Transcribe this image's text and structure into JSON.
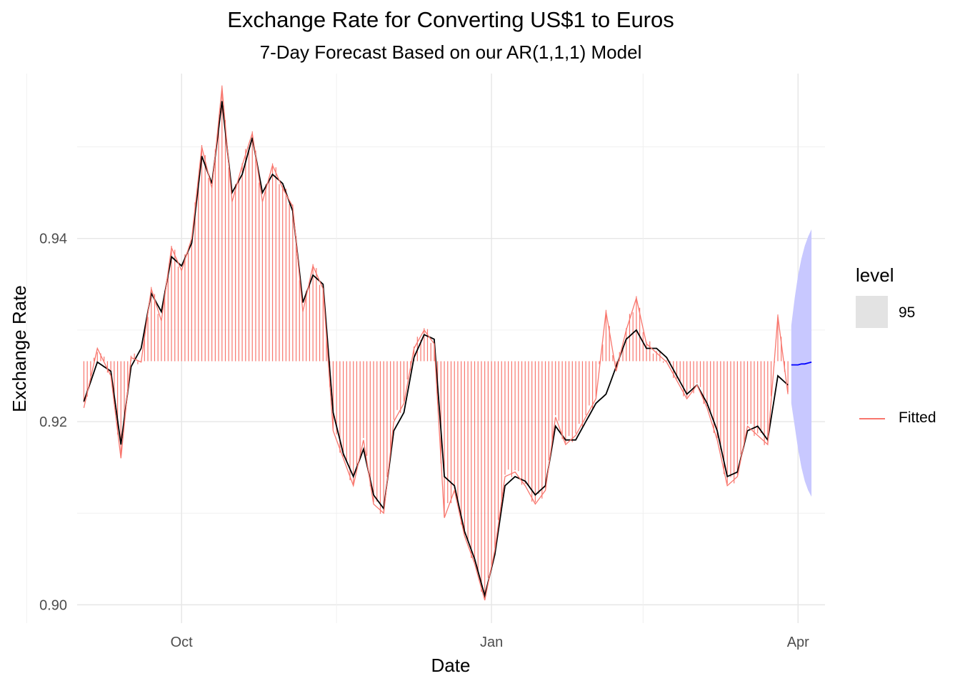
{
  "chart_data": {
    "type": "line",
    "title": "Exchange Rate for Converting US$1 to Euros",
    "subtitle": "7-Day Forecast Based on our AR(1,1,1) Model",
    "xlabel": "Date",
    "ylabel": "Exchange Rate",
    "x_ticks": [
      "Oct",
      "Jan",
      "Apr"
    ],
    "y_ticks": [
      "0.90",
      "0.92",
      "0.94"
    ],
    "ylim": [
      0.898,
      0.958
    ],
    "xlim": [
      "2023-08-31",
      "2024-04-09"
    ],
    "grid": true,
    "legend": {
      "position": "right",
      "title": "level",
      "items": [
        {
          "label": "95",
          "kind": "fill",
          "color": "#e3e3e3"
        },
        {
          "label": "Fitted",
          "kind": "line",
          "color": "#f8766d"
        }
      ]
    },
    "reference_level": 0.9266,
    "colors": {
      "actual": "#000000",
      "fitted": "#f8766d",
      "forecast": "#0000ff",
      "interval": "#c8c8ff"
    },
    "series": [
      {
        "kind": "actual",
        "x": [
          "2023-09-02",
          "2023-09-06",
          "2023-09-10",
          "2023-09-13",
          "2023-09-16",
          "2023-09-19",
          "2023-09-22",
          "2023-09-25",
          "2023-09-28",
          "2023-10-01",
          "2023-10-04",
          "2023-10-07",
          "2023-10-10",
          "2023-10-13",
          "2023-10-16",
          "2023-10-19",
          "2023-10-22",
          "2023-10-25",
          "2023-10-28",
          "2023-10-31",
          "2023-11-03",
          "2023-11-06",
          "2023-11-09",
          "2023-11-12",
          "2023-11-15",
          "2023-11-18",
          "2023-11-21",
          "2023-11-24",
          "2023-11-27",
          "2023-11-30",
          "2023-12-03",
          "2023-12-06",
          "2023-12-09",
          "2023-12-12",
          "2023-12-15",
          "2023-12-18",
          "2023-12-21",
          "2023-12-24",
          "2023-12-27",
          "2023-12-30",
          "2024-01-02",
          "2024-01-05",
          "2024-01-08",
          "2024-01-11",
          "2024-01-14",
          "2024-01-17",
          "2024-01-20",
          "2024-01-23",
          "2024-01-26",
          "2024-01-29",
          "2024-02-01",
          "2024-02-04",
          "2024-02-07",
          "2024-02-10",
          "2024-02-13",
          "2024-02-16",
          "2024-02-19",
          "2024-02-22",
          "2024-02-25",
          "2024-02-28",
          "2024-03-02",
          "2024-03-05",
          "2024-03-08",
          "2024-03-11",
          "2024-03-14",
          "2024-03-17",
          "2024-03-20",
          "2024-03-23",
          "2024-03-26",
          "2024-03-29"
        ],
        "y": [
          0.9222,
          0.9265,
          0.9255,
          0.9175,
          0.926,
          0.928,
          0.934,
          0.932,
          0.938,
          0.937,
          0.9395,
          0.949,
          0.946,
          0.955,
          0.945,
          0.947,
          0.951,
          0.945,
          0.947,
          0.946,
          0.943,
          0.933,
          0.936,
          0.935,
          0.921,
          0.9165,
          0.914,
          0.917,
          0.912,
          0.9105,
          0.919,
          0.921,
          0.927,
          0.9295,
          0.929,
          0.914,
          0.913,
          0.908,
          0.905,
          0.901,
          0.9055,
          0.913,
          0.914,
          0.9135,
          0.912,
          0.913,
          0.9195,
          0.918,
          0.918,
          0.92,
          0.922,
          0.923,
          0.926,
          0.929,
          0.93,
          0.928,
          0.928,
          0.927,
          0.925,
          0.923,
          0.924,
          0.922,
          0.919,
          0.914,
          0.9145,
          0.919,
          0.9195,
          0.918,
          0.925,
          0.924
        ]
      },
      {
        "kind": "fitted",
        "name": "Fitted",
        "x": [
          "2023-09-02",
          "2023-09-06",
          "2023-09-10",
          "2023-09-13",
          "2023-09-16",
          "2023-09-19",
          "2023-09-22",
          "2023-09-25",
          "2023-09-28",
          "2023-10-01",
          "2023-10-04",
          "2023-10-07",
          "2023-10-10",
          "2023-10-13",
          "2023-10-16",
          "2023-10-19",
          "2023-10-22",
          "2023-10-25",
          "2023-10-28",
          "2023-10-31",
          "2023-11-03",
          "2023-11-06",
          "2023-11-09",
          "2023-11-12",
          "2023-11-15",
          "2023-11-18",
          "2023-11-21",
          "2023-11-24",
          "2023-11-27",
          "2023-11-30",
          "2023-12-03",
          "2023-12-06",
          "2023-12-09",
          "2023-12-12",
          "2023-12-15",
          "2023-12-18",
          "2023-12-21",
          "2023-12-24",
          "2023-12-27",
          "2023-12-30",
          "2024-01-02",
          "2024-01-05",
          "2024-01-08",
          "2024-01-11",
          "2024-01-14",
          "2024-01-17",
          "2024-01-20",
          "2024-01-23",
          "2024-01-26",
          "2024-01-29",
          "2024-02-01",
          "2024-02-04",
          "2024-02-07",
          "2024-02-10",
          "2024-02-13",
          "2024-02-16",
          "2024-02-19",
          "2024-02-22",
          "2024-02-25",
          "2024-02-28",
          "2024-03-02",
          "2024-03-05",
          "2024-03-08",
          "2024-03-11",
          "2024-03-14",
          "2024-03-17",
          "2024-03-20",
          "2024-03-23",
          "2024-03-26",
          "2024-03-29"
        ],
        "y": [
          0.9215,
          0.928,
          0.925,
          0.916,
          0.927,
          0.9265,
          0.9345,
          0.931,
          0.939,
          0.9365,
          0.94,
          0.95,
          0.9455,
          0.9565,
          0.944,
          0.948,
          0.9515,
          0.944,
          0.948,
          0.9455,
          0.9435,
          0.932,
          0.937,
          0.9345,
          0.919,
          0.916,
          0.913,
          0.918,
          0.911,
          0.91,
          0.92,
          0.922,
          0.928,
          0.93,
          0.9285,
          0.9095,
          0.9125,
          0.9075,
          0.9045,
          0.9005,
          0.906,
          0.914,
          0.9145,
          0.913,
          0.911,
          0.9125,
          0.9205,
          0.9175,
          0.9185,
          0.9205,
          0.9225,
          0.932,
          0.9255,
          0.93,
          0.9335,
          0.9285,
          0.9275,
          0.9265,
          0.9245,
          0.9225,
          0.924,
          0.9215,
          0.918,
          0.913,
          0.914,
          0.9195,
          0.9185,
          0.9175,
          0.9315,
          0.923
        ]
      },
      {
        "kind": "forecast",
        "x": [
          "2024-03-30",
          "2024-03-31",
          "2024-04-01",
          "2024-04-02",
          "2024-04-03",
          "2024-04-04",
          "2024-04-05"
        ],
        "y": [
          0.9262,
          0.9262,
          0.9262,
          0.9263,
          0.9263,
          0.9264,
          0.9265
        ],
        "lower": [
          0.922,
          0.9195,
          0.917,
          0.915,
          0.9135,
          0.9125,
          0.9118
        ],
        "upper": [
          0.9305,
          0.9335,
          0.936,
          0.9378,
          0.9392,
          0.9402,
          0.941
        ]
      }
    ]
  }
}
